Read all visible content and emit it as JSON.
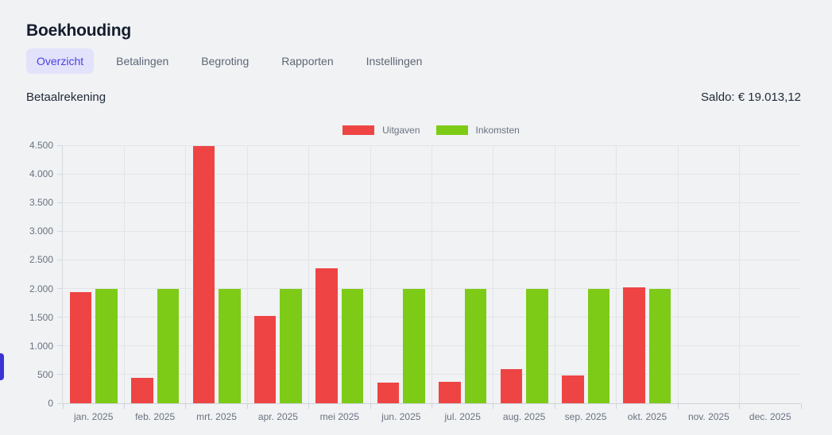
{
  "header": {
    "title": "Boekhouding"
  },
  "tabs": [
    {
      "label": "Overzicht",
      "active": true
    },
    {
      "label": "Betalingen",
      "active": false
    },
    {
      "label": "Begroting",
      "active": false
    },
    {
      "label": "Rapporten",
      "active": false
    },
    {
      "label": "Instellingen",
      "active": false
    }
  ],
  "account": {
    "name": "Betaalrekening",
    "saldo_text": "Saldo: € 19.013,12"
  },
  "chart_data": {
    "type": "bar",
    "categories": [
      "jan. 2025",
      "feb. 2025",
      "mrt. 2025",
      "apr. 2025",
      "mei 2025",
      "jun. 2025",
      "jul. 2025",
      "aug. 2025",
      "sep. 2025",
      "okt. 2025",
      "nov. 2025",
      "dec. 2025"
    ],
    "series": [
      {
        "name": "Uitgaven",
        "color": "#ee4544",
        "values": [
          1945,
          450,
          4490,
          1530,
          2350,
          360,
          370,
          600,
          485,
          2015,
          0,
          0
        ]
      },
      {
        "name": "Inkomsten",
        "color": "#7dcb17",
        "values": [
          1990,
          1990,
          1990,
          1990,
          1990,
          1990,
          1990,
          1990,
          1990,
          1990,
          0,
          0
        ]
      }
    ],
    "title": "",
    "xlabel": "",
    "ylabel": "",
    "ylim": [
      0,
      4500
    ],
    "ytick_step": 500,
    "ytick_labels": [
      "0",
      "500",
      "1.000",
      "1.500",
      "2.000",
      "2.500",
      "3.000",
      "3.500",
      "4.000",
      "4.500"
    ],
    "legend_position": "top",
    "grid": true
  },
  "colors": {
    "page_bg": "#f0f2f4",
    "accent": "#4a42e0",
    "accent_bg": "#e2e2fb",
    "uitgaven_red": "#ee4544",
    "inkomsten_green": "#7dcb17",
    "gridline": "#e2e4e8",
    "axis": "#cfd3d9",
    "title_text": "#151d2d",
    "muted_text": "#6a7380",
    "side_handle": "#3c33d4"
  }
}
